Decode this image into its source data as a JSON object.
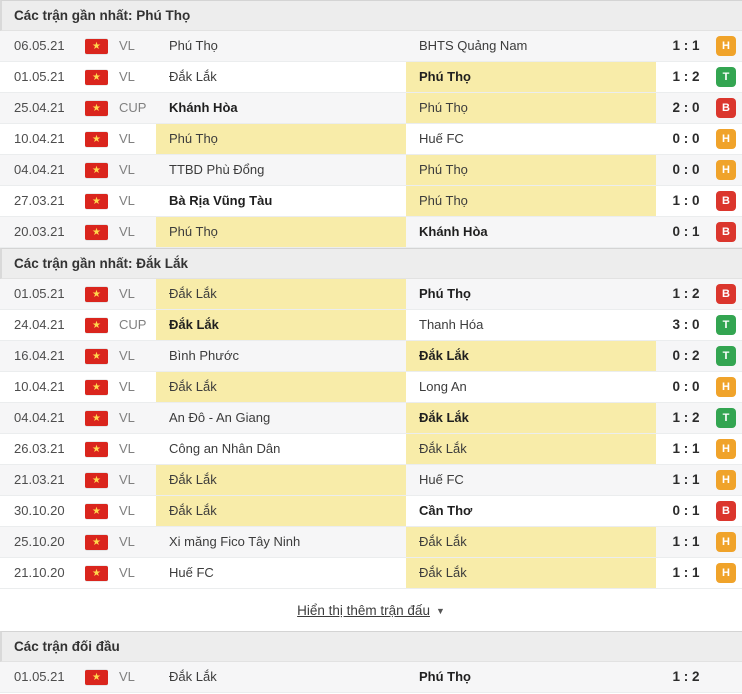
{
  "colors": {
    "highlight": "#f8eca9",
    "win": "#33a551",
    "draw": "#f0a32a",
    "loss": "#db362d",
    "flag_red": "#da251d",
    "flag_star": "#ffd84d",
    "header_bg": "#ededed"
  },
  "flag_icon": "vietnam-flag",
  "flag_star_glyph": "★",
  "result_legend": {
    "T": "win-green",
    "H": "draw-orange",
    "B": "loss-red"
  },
  "show_more": {
    "label": "Hiển thị thêm trận đấu",
    "arrow": "▼"
  },
  "sections": [
    {
      "title": "Các trận gần nhất: Phú Thọ",
      "rows": [
        {
          "date": "06.05.21",
          "comp": "VL",
          "home": {
            "name": "Phú Thọ"
          },
          "away": {
            "name": "BHTS Quảng Nam"
          },
          "score": "1 : 1",
          "result": "H"
        },
        {
          "date": "01.05.21",
          "comp": "VL",
          "home": {
            "name": "Đắk Lắk"
          },
          "away": {
            "name": "Phú Thọ",
            "hl": true,
            "bold": true
          },
          "score": "1 : 2",
          "result": "T"
        },
        {
          "date": "25.04.21",
          "comp": "CUP",
          "home": {
            "name": "Khánh Hòa",
            "bold": true
          },
          "away": {
            "name": "Phú Thọ",
            "hl": true
          },
          "score": "2 : 0",
          "result": "B"
        },
        {
          "date": "10.04.21",
          "comp": "VL",
          "home": {
            "name": "Phú Thọ",
            "hl": true
          },
          "away": {
            "name": "Huế FC"
          },
          "score": "0 : 0",
          "result": "H"
        },
        {
          "date": "04.04.21",
          "comp": "VL",
          "home": {
            "name": "TTBD Phù Đổng"
          },
          "away": {
            "name": "Phú Thọ",
            "hl": true
          },
          "score": "0 : 0",
          "result": "H"
        },
        {
          "date": "27.03.21",
          "comp": "VL",
          "home": {
            "name": "Bà Rịa Vũng Tàu",
            "bold": true
          },
          "away": {
            "name": "Phú Thọ",
            "hl": true
          },
          "score": "1 : 0",
          "result": "B"
        },
        {
          "date": "20.03.21",
          "comp": "VL",
          "home": {
            "name": "Phú Thọ",
            "hl": true
          },
          "away": {
            "name": "Khánh Hòa",
            "bold": true
          },
          "score": "0 : 1",
          "result": "B"
        }
      ]
    },
    {
      "title": "Các trận gần nhất: Đắk Lắk",
      "rows": [
        {
          "date": "01.05.21",
          "comp": "VL",
          "home": {
            "name": "Đắk Lắk",
            "hl": true
          },
          "away": {
            "name": "Phú Thọ",
            "bold": true
          },
          "score": "1 : 2",
          "result": "B"
        },
        {
          "date": "24.04.21",
          "comp": "CUP",
          "home": {
            "name": "Đắk Lắk",
            "hl": true,
            "bold": true
          },
          "away": {
            "name": "Thanh Hóa"
          },
          "score": "3 : 0",
          "result": "T"
        },
        {
          "date": "16.04.21",
          "comp": "VL",
          "home": {
            "name": "Bình Phước"
          },
          "away": {
            "name": "Đắk Lắk",
            "hl": true,
            "bold": true
          },
          "score": "0 : 2",
          "result": "T"
        },
        {
          "date": "10.04.21",
          "comp": "VL",
          "home": {
            "name": "Đắk Lắk",
            "hl": true
          },
          "away": {
            "name": "Long An"
          },
          "score": "0 : 0",
          "result": "H"
        },
        {
          "date": "04.04.21",
          "comp": "VL",
          "home": {
            "name": "An Đô - An Giang"
          },
          "away": {
            "name": "Đắk Lắk",
            "hl": true,
            "bold": true
          },
          "score": "1 : 2",
          "result": "T"
        },
        {
          "date": "26.03.21",
          "comp": "VL",
          "home": {
            "name": "Công an Nhân Dân"
          },
          "away": {
            "name": "Đắk Lắk",
            "hl": true
          },
          "score": "1 : 1",
          "result": "H"
        },
        {
          "date": "21.03.21",
          "comp": "VL",
          "home": {
            "name": "Đắk Lắk",
            "hl": true
          },
          "away": {
            "name": "Huế FC"
          },
          "score": "1 : 1",
          "result": "H"
        },
        {
          "date": "30.10.20",
          "comp": "VL",
          "home": {
            "name": "Đắk Lắk",
            "hl": true
          },
          "away": {
            "name": "Cần Thơ",
            "bold": true
          },
          "score": "0 : 1",
          "result": "B"
        },
        {
          "date": "25.10.20",
          "comp": "VL",
          "home": {
            "name": "Xi măng Fico Tây Ninh"
          },
          "away": {
            "name": "Đắk Lắk",
            "hl": true
          },
          "score": "1 : 1",
          "result": "H"
        },
        {
          "date": "21.10.20",
          "comp": "VL",
          "home": {
            "name": "Huế FC"
          },
          "away": {
            "name": "Đắk Lắk",
            "hl": true
          },
          "score": "1 : 1",
          "result": "H"
        }
      ]
    },
    {
      "title": "Các trận đối đầu",
      "rows": [
        {
          "date": "01.05.21",
          "comp": "VL",
          "home": {
            "name": "Đắk Lắk"
          },
          "away": {
            "name": "Phú Thọ",
            "bold": true
          },
          "score": "1 : 2",
          "result": null
        }
      ]
    }
  ]
}
